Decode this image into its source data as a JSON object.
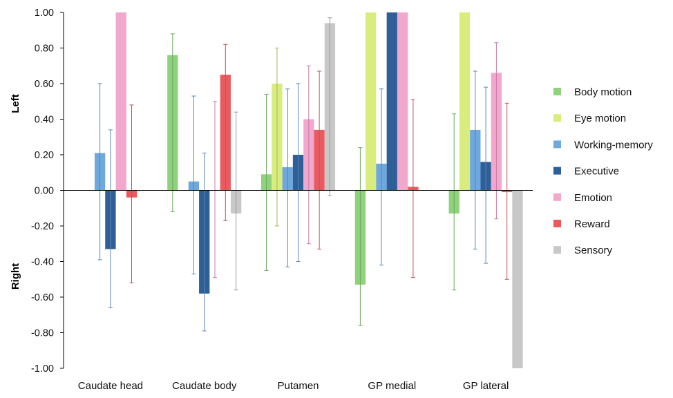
{
  "chart_data": {
    "type": "bar",
    "categories": [
      "Caudate head",
      "Caudate body",
      "Putamen",
      "GP medial",
      "GP lateral"
    ],
    "ylim": [
      -1.0,
      1.0
    ],
    "yticks": [
      1.0,
      0.8,
      0.6,
      0.4,
      0.2,
      0.0,
      -0.2,
      -0.4,
      -0.6,
      -0.8,
      -1.0
    ],
    "ytick_labels": [
      "1.00",
      "0.80",
      "0.60",
      "0.40",
      "0.20",
      "0.00",
      "-0.20",
      "-0.40",
      "-0.60",
      "-0.80",
      "-1.00"
    ],
    "side_labels": {
      "upper": "Left",
      "lower": "Right"
    },
    "legend_position": "right",
    "grid": false,
    "series": [
      {
        "name": "Body motion",
        "color": "#8fd17c",
        "err_color": "#6aa85a",
        "values": [
          0.0,
          0.76,
          0.09,
          -0.53,
          -0.13
        ],
        "err_low": [
          0.0,
          -0.12,
          -0.45,
          -0.76,
          -0.56
        ],
        "err_high": [
          0.0,
          0.88,
          0.54,
          0.24,
          0.43
        ]
      },
      {
        "name": "Eye motion",
        "color": "#d9ec7e",
        "err_color": "#a5b357",
        "values": [
          0.0,
          0.0,
          0.6,
          1.0,
          1.0
        ],
        "err_low": [
          0.0,
          0.0,
          -0.2,
          1.0,
          1.0
        ],
        "err_high": [
          0.0,
          0.0,
          0.8,
          1.0,
          1.0
        ]
      },
      {
        "name": "Working-memory",
        "color": "#6fa8dc",
        "err_color": "#4d86bd",
        "values": [
          0.21,
          0.05,
          0.13,
          0.15,
          0.34
        ],
        "err_low": [
          -0.39,
          -0.47,
          -0.43,
          -0.42,
          -0.33
        ],
        "err_high": [
          0.6,
          0.53,
          0.57,
          0.57,
          0.67
        ]
      },
      {
        "name": "Executive",
        "color": "#2f5f97",
        "err_color": "#5b86b8",
        "values": [
          -0.33,
          -0.58,
          0.2,
          1.0,
          0.16
        ],
        "err_low": [
          -0.66,
          -0.79,
          -0.4,
          1.0,
          -0.41
        ],
        "err_high": [
          0.34,
          0.21,
          0.6,
          1.0,
          0.58
        ]
      },
      {
        "name": "Emotion",
        "color": "#f2a7cd",
        "err_color": "#c87aa3",
        "values": [
          1.0,
          0.0,
          0.4,
          1.0,
          0.66
        ],
        "err_low": [
          1.0,
          -0.49,
          -0.3,
          1.0,
          -0.16
        ],
        "err_high": [
          1.0,
          0.5,
          0.7,
          1.0,
          0.83
        ]
      },
      {
        "name": "Reward",
        "color": "#ea5b5f",
        "err_color": "#c45055",
        "values": [
          -0.04,
          0.65,
          0.34,
          0.02,
          -0.01
        ],
        "err_low": [
          -0.52,
          -0.17,
          -0.33,
          -0.49,
          -0.5
        ],
        "err_high": [
          0.48,
          0.82,
          0.67,
          0.51,
          0.49
        ]
      },
      {
        "name": "Sensory",
        "color": "#c8c8c8",
        "err_color": "#9a9a9a",
        "values": [
          0.0,
          -0.13,
          0.94,
          0.0,
          -1.0
        ],
        "err_low": [
          0.0,
          -0.56,
          -0.03,
          0.0,
          -1.0
        ],
        "err_high": [
          0.0,
          0.44,
          0.97,
          0.0,
          -1.0
        ]
      }
    ]
  }
}
